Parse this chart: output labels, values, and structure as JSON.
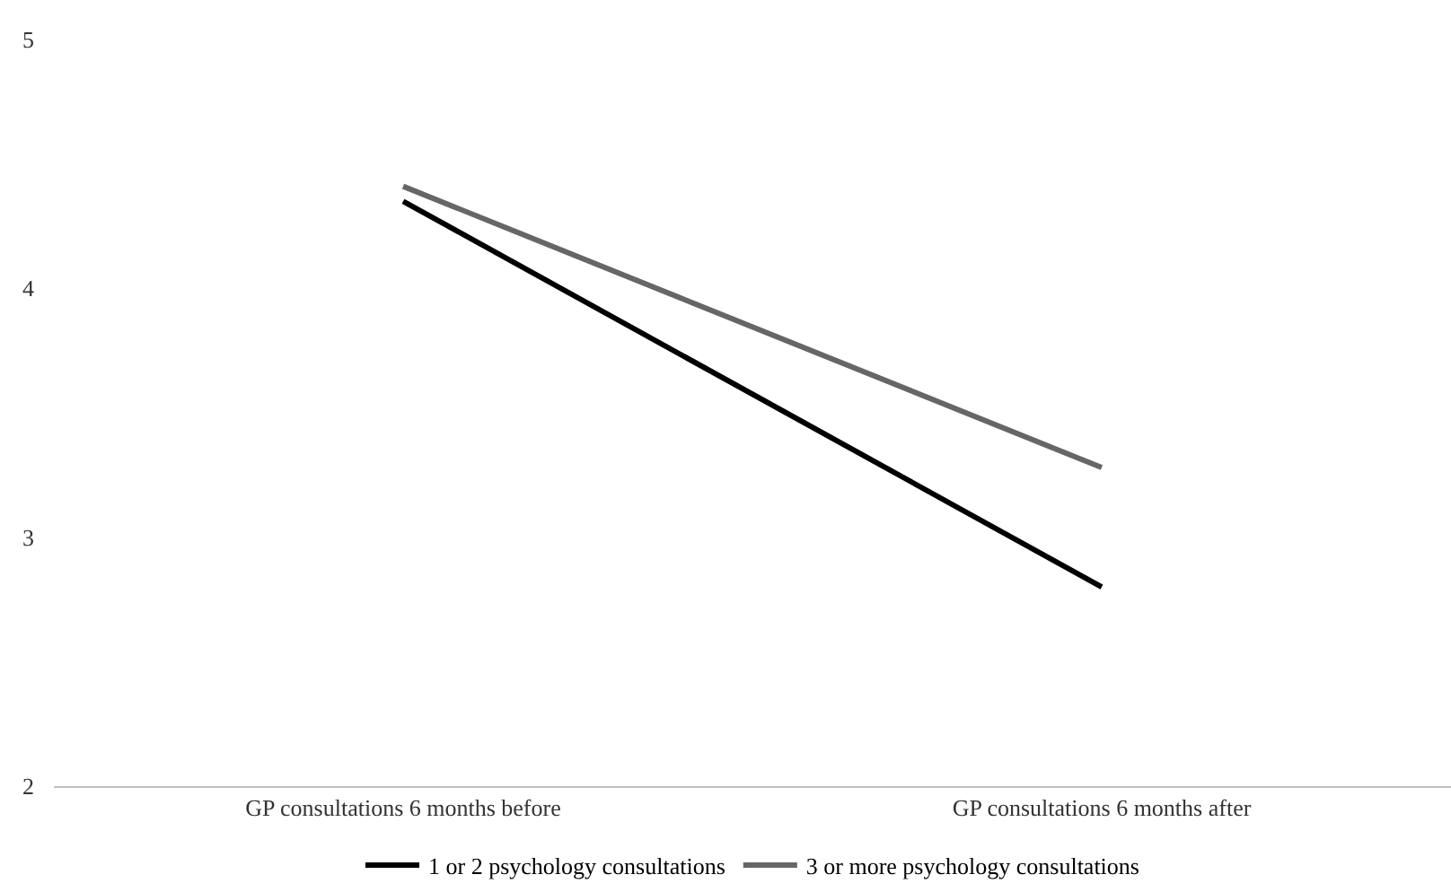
{
  "chart_data": {
    "type": "line",
    "categories": [
      "GP consultations 6 months before",
      "GP consultations 6 months after"
    ],
    "series": [
      {
        "name": "1 or 2 psychology consultations",
        "color": "#000000",
        "values": [
          4.35,
          2.8
        ]
      },
      {
        "name": "3 or more psychology consultations",
        "color": "#666666",
        "values": [
          4.41,
          3.28
        ]
      }
    ],
    "ylim": [
      2,
      5
    ],
    "yticks": [
      2,
      3,
      4,
      5
    ],
    "grid": false,
    "legend": "bottom",
    "marker": "none",
    "line_style": "solid"
  }
}
